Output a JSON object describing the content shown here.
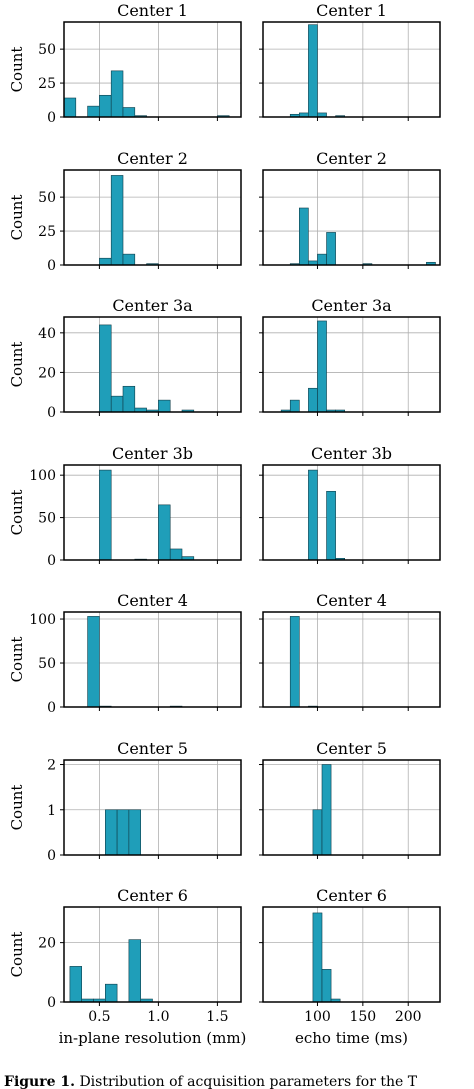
{
  "figure": {
    "caption_label": "Figure 1.",
    "caption_text": "Distribution of acquisition parameters for the T"
  },
  "colors": {
    "bar": "#1f9eb9",
    "bar_edge": "#0f3c48",
    "grid": "#b0b0b0",
    "frame": "#000000"
  },
  "chart_data": [
    {
      "type": "bar",
      "title": "Center 1",
      "xlabel": "",
      "ylabel": "Count",
      "xlim": [
        0.2,
        1.7
      ],
      "ylim": [
        0,
        70
      ],
      "yticks": [
        0,
        25,
        50
      ],
      "xticks": [
        0.5,
        1.0,
        1.5
      ],
      "grid": true,
      "bin_width": 0.1,
      "x": [
        0.25,
        0.35,
        0.45,
        0.55,
        0.65,
        0.75,
        0.85,
        0.95,
        1.05,
        1.15,
        1.25,
        1.35,
        1.45,
        1.55,
        1.65
      ],
      "values": [
        14,
        0,
        8,
        16,
        34,
        7,
        1,
        0,
        0,
        0,
        0,
        0,
        0,
        1,
        0
      ]
    },
    {
      "type": "bar",
      "title": "Center 1",
      "xlabel": "",
      "ylabel": "",
      "xlim": [
        40,
        235
      ],
      "ylim": [
        0,
        70
      ],
      "yticks": [
        0,
        25,
        50
      ],
      "xticks": [
        100,
        150,
        200
      ],
      "grid": true,
      "bin_width": 10,
      "x": [
        75,
        85,
        95,
        105,
        115,
        125,
        135
      ],
      "values": [
        2,
        3,
        68,
        3,
        0,
        1,
        0
      ]
    },
    {
      "type": "bar",
      "title": "Center 2",
      "xlabel": "",
      "ylabel": "Count",
      "xlim": [
        0.2,
        1.7
      ],
      "ylim": [
        0,
        70
      ],
      "yticks": [
        0,
        25,
        50
      ],
      "xticks": [
        0.5,
        1.0,
        1.5
      ],
      "grid": true,
      "bin_width": 0.1,
      "x": [
        0.55,
        0.65,
        0.75,
        0.85,
        0.95
      ],
      "values": [
        5,
        66,
        8,
        0,
        1
      ]
    },
    {
      "type": "bar",
      "title": "Center 2",
      "xlabel": "",
      "ylabel": "",
      "xlim": [
        40,
        235
      ],
      "ylim": [
        0,
        70
      ],
      "yticks": [
        0,
        25,
        50
      ],
      "xticks": [
        100,
        150,
        200
      ],
      "grid": true,
      "bin_width": 10,
      "x": [
        75,
        85,
        95,
        105,
        115,
        125,
        135,
        145,
        155,
        165,
        175,
        185,
        195,
        205,
        215,
        225
      ],
      "values": [
        1,
        42,
        3,
        8,
        24,
        0,
        0,
        0,
        1,
        0,
        0,
        0,
        0,
        0,
        0,
        2
      ]
    },
    {
      "type": "bar",
      "title": "Center 3a",
      "xlabel": "",
      "ylabel": "Count",
      "xlim": [
        0.2,
        1.7
      ],
      "ylim": [
        0,
        48
      ],
      "yticks": [
        0,
        20,
        40
      ],
      "xticks": [
        0.5,
        1.0,
        1.5
      ],
      "grid": true,
      "bin_width": 0.1,
      "x": [
        0.55,
        0.65,
        0.75,
        0.85,
        0.95,
        1.05,
        1.15,
        1.25,
        1.35,
        1.45
      ],
      "values": [
        44,
        8,
        13,
        2,
        1,
        6,
        0,
        1,
        0,
        0
      ]
    },
    {
      "type": "bar",
      "title": "Center 3a",
      "xlabel": "",
      "ylabel": "",
      "xlim": [
        40,
        235
      ],
      "ylim": [
        0,
        48
      ],
      "yticks": [
        0,
        20,
        40
      ],
      "xticks": [
        100,
        150,
        200
      ],
      "grid": true,
      "bin_width": 10,
      "x": [
        65,
        75,
        85,
        95,
        105,
        115,
        125
      ],
      "values": [
        1,
        6,
        0,
        12,
        46,
        1,
        1
      ]
    },
    {
      "type": "bar",
      "title": "Center 3b",
      "xlabel": "",
      "ylabel": "Count",
      "xlim": [
        0.2,
        1.7
      ],
      "ylim": [
        0,
        112
      ],
      "yticks": [
        0,
        50,
        100
      ],
      "xticks": [
        0.5,
        1.0,
        1.5
      ],
      "grid": true,
      "bin_width": 0.1,
      "x": [
        0.55,
        0.65,
        0.75,
        0.85,
        0.95,
        1.05,
        1.15,
        1.25
      ],
      "values": [
        106,
        0,
        0,
        1,
        0,
        65,
        13,
        4
      ]
    },
    {
      "type": "bar",
      "title": "Center 3b",
      "xlabel": "",
      "ylabel": "",
      "xlim": [
        40,
        235
      ],
      "ylim": [
        0,
        112
      ],
      "yticks": [
        0,
        50,
        100
      ],
      "xticks": [
        100,
        150,
        200
      ],
      "grid": true,
      "bin_width": 10,
      "x": [
        95,
        105,
        115,
        125
      ],
      "values": [
        106,
        0,
        81,
        2
      ]
    },
    {
      "type": "bar",
      "title": "Center 4",
      "xlabel": "",
      "ylabel": "Count",
      "xlim": [
        0.2,
        1.7
      ],
      "ylim": [
        0,
        108
      ],
      "yticks": [
        0,
        50,
        100
      ],
      "xticks": [
        0.5,
        1.0,
        1.5
      ],
      "grid": true,
      "bin_width": 0.1,
      "x": [
        0.45,
        0.55,
        0.65,
        0.75,
        0.85,
        0.95,
        1.05,
        1.15
      ],
      "values": [
        103,
        1,
        0,
        0,
        0,
        0,
        0,
        1
      ]
    },
    {
      "type": "bar",
      "title": "Center 4",
      "xlabel": "",
      "ylabel": "",
      "xlim": [
        40,
        235
      ],
      "ylim": [
        0,
        108
      ],
      "yticks": [
        0,
        50,
        100
      ],
      "xticks": [
        100,
        150,
        200
      ],
      "grid": true,
      "bin_width": 10,
      "x": [
        75,
        85,
        95
      ],
      "values": [
        103,
        0,
        1
      ]
    },
    {
      "type": "bar",
      "title": "Center 5",
      "xlabel": "",
      "ylabel": "Count",
      "xlim": [
        0.2,
        1.7
      ],
      "ylim": [
        0,
        2.1
      ],
      "yticks": [
        0,
        1,
        2
      ],
      "xticks": [
        0.5,
        1.0,
        1.5
      ],
      "grid": true,
      "bin_width": 0.1,
      "x": [
        0.6,
        0.7,
        0.8
      ],
      "values": [
        1,
        1,
        1
      ]
    },
    {
      "type": "bar",
      "title": "Center 5",
      "xlabel": "",
      "ylabel": "",
      "xlim": [
        40,
        235
      ],
      "ylim": [
        0,
        2.1
      ],
      "yticks": [
        0,
        1,
        2
      ],
      "xticks": [
        100,
        150,
        200
      ],
      "grid": true,
      "bin_width": 10,
      "x": [
        100,
        110
      ],
      "values": [
        1,
        2
      ]
    },
    {
      "type": "bar",
      "title": "Center 6",
      "xlabel": "in-plane resolution (mm)",
      "ylabel": "Count",
      "xlim": [
        0.2,
        1.7
      ],
      "ylim": [
        0,
        32
      ],
      "yticks": [
        0,
        20
      ],
      "xticks": [
        0.5,
        1.0,
        1.5
      ],
      "grid": true,
      "bin_width": 0.1,
      "x": [
        0.3,
        0.4,
        0.5,
        0.6,
        0.7,
        0.8,
        0.9
      ],
      "values": [
        12,
        1,
        1,
        6,
        0,
        21,
        1
      ]
    },
    {
      "type": "bar",
      "title": "Center 6",
      "xlabel": "echo time (ms)",
      "ylabel": "",
      "xlim": [
        40,
        235
      ],
      "ylim": [
        0,
        32
      ],
      "yticks": [
        0,
        20
      ],
      "xticks": [
        100,
        150,
        200
      ],
      "grid": true,
      "bin_width": 10,
      "x": [
        100,
        110,
        120
      ],
      "values": [
        30,
        11,
        1
      ]
    }
  ]
}
